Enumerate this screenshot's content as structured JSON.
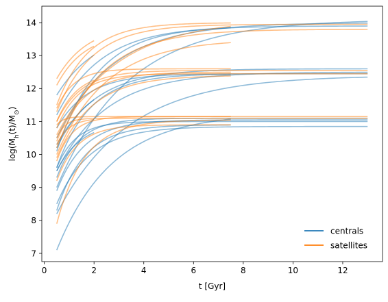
{
  "chart_data": {
    "type": "line",
    "xlabel": "t [Gyr]",
    "ylabel": "log(M_h(t)/M_⊙)",
    "xlim": [
      -0.1,
      13.6
    ],
    "ylim": [
      6.75,
      14.5
    ],
    "xticks": [
      0,
      2,
      4,
      6,
      8,
      10,
      12
    ],
    "yticks": [
      7,
      8,
      9,
      10,
      11,
      12,
      13,
      14
    ],
    "grid": false,
    "legend": {
      "position": "lower-right",
      "frame": false
    },
    "series": [
      {
        "name": "centrals",
        "color": "#1f77b4",
        "curves": [
          {
            "t_start": 0.5,
            "t_end": 13.0,
            "m0": 8.5,
            "m_final": 10.85,
            "k": 0.75
          },
          {
            "t_start": 0.5,
            "t_end": 13.0,
            "m0": 8.9,
            "m_final": 11.05,
            "k": 0.9
          },
          {
            "t_start": 0.5,
            "t_end": 13.0,
            "m0": 9.3,
            "m_final": 11.1,
            "k": 1.1
          },
          {
            "t_start": 0.5,
            "t_end": 13.0,
            "m0": 9.6,
            "m_final": 11.0,
            "k": 1.3
          },
          {
            "t_start": 0.5,
            "t_end": 13.0,
            "m0": 8.2,
            "m_final": 12.4,
            "k": 0.35
          },
          {
            "t_start": 0.5,
            "t_end": 13.0,
            "m0": 9.5,
            "m_final": 12.5,
            "k": 0.5
          },
          {
            "t_start": 0.5,
            "t_end": 13.0,
            "m0": 10.3,
            "m_final": 12.6,
            "k": 0.6
          },
          {
            "t_start": 0.5,
            "t_end": 13.0,
            "m0": 10.8,
            "m_final": 12.45,
            "k": 0.8
          },
          {
            "t_start": 0.5,
            "t_end": 13.0,
            "m0": 9.0,
            "m_final": 14.1,
            "k": 0.35
          },
          {
            "t_start": 0.5,
            "t_end": 13.0,
            "m0": 10.5,
            "m_final": 14.0,
            "k": 0.45
          },
          {
            "t_start": 0.5,
            "t_end": 13.0,
            "m0": 11.2,
            "m_final": 13.9,
            "k": 0.55
          },
          {
            "t_start": 0.5,
            "t_end": 7.5,
            "m0": 7.1,
            "m_final": 11.25,
            "k": 0.45
          },
          {
            "t_start": 0.5,
            "t_end": 7.5,
            "m0": 8.3,
            "m_final": 10.9,
            "k": 0.9
          },
          {
            "t_start": 0.5,
            "t_end": 7.5,
            "m0": 9.6,
            "m_final": 12.45,
            "k": 0.75
          },
          {
            "t_start": 0.5,
            "t_end": 7.5,
            "m0": 10.1,
            "m_final": 13.9,
            "k": 0.6
          },
          {
            "t_start": 0.5,
            "t_end": 2.0,
            "m0": 9.5,
            "m_final": 11.0,
            "k": 1.0
          },
          {
            "t_start": 0.5,
            "t_end": 2.0,
            "m0": 10.2,
            "m_final": 12.45,
            "k": 0.7
          },
          {
            "t_start": 0.5,
            "t_end": 2.0,
            "m0": 11.8,
            "m_final": 13.85,
            "k": 0.6
          }
        ]
      },
      {
        "name": "satellites",
        "color": "#ff7f0e",
        "curves": [
          {
            "t_start": 0.5,
            "t_end": 13.0,
            "m0": 10.5,
            "m_final": 11.1,
            "k": 3.0
          },
          {
            "t_start": 0.5,
            "t_end": 13.0,
            "m0": 9.8,
            "m_final": 11.15,
            "k": 1.6
          },
          {
            "t_start": 0.5,
            "t_end": 13.0,
            "m0": 10.8,
            "m_final": 12.45,
            "k": 1.1
          },
          {
            "t_start": 0.5,
            "t_end": 13.0,
            "m0": 11.0,
            "m_final": 12.55,
            "k": 1.0
          },
          {
            "t_start": 0.5,
            "t_end": 13.0,
            "m0": 11.3,
            "m_final": 13.95,
            "k": 0.7
          },
          {
            "t_start": 0.5,
            "t_end": 13.0,
            "m0": 10.2,
            "m_final": 13.8,
            "k": 0.55
          },
          {
            "t_start": 0.5,
            "t_end": 7.5,
            "m0": 7.9,
            "m_final": 11.05,
            "k": 0.9
          },
          {
            "t_start": 0.5,
            "t_end": 7.5,
            "m0": 9.2,
            "m_final": 10.9,
            "k": 1.2
          },
          {
            "t_start": 0.5,
            "t_end": 7.5,
            "m0": 10.9,
            "m_final": 11.15,
            "k": 3.5
          },
          {
            "t_start": 0.5,
            "t_end": 7.5,
            "m0": 10.4,
            "m_final": 12.5,
            "k": 0.9
          },
          {
            "t_start": 0.5,
            "t_end": 7.5,
            "m0": 11.4,
            "m_final": 12.6,
            "k": 1.4
          },
          {
            "t_start": 0.5,
            "t_end": 7.5,
            "m0": 9.9,
            "m_final": 12.4,
            "k": 0.7
          },
          {
            "t_start": 0.5,
            "t_end": 7.5,
            "m0": 10.6,
            "m_final": 14.1,
            "k": 0.4
          },
          {
            "t_start": 0.5,
            "t_end": 7.5,
            "m0": 11.5,
            "m_final": 14.0,
            "k": 0.8
          },
          {
            "t_start": 0.5,
            "t_end": 7.5,
            "m0": 10.0,
            "m_final": 13.5,
            "k": 0.5
          },
          {
            "t_start": 0.5,
            "t_end": 2.0,
            "m0": 10.3,
            "m_final": 11.1,
            "k": 2.0
          },
          {
            "t_start": 0.5,
            "t_end": 2.0,
            "m0": 11.0,
            "m_final": 12.5,
            "k": 1.2
          },
          {
            "t_start": 0.5,
            "t_end": 2.0,
            "m0": 12.3,
            "m_final": 13.95,
            "k": 0.8
          },
          {
            "t_start": 0.5,
            "t_end": 2.0,
            "m0": 12.1,
            "m_final": 13.7,
            "k": 0.9
          }
        ]
      }
    ]
  }
}
